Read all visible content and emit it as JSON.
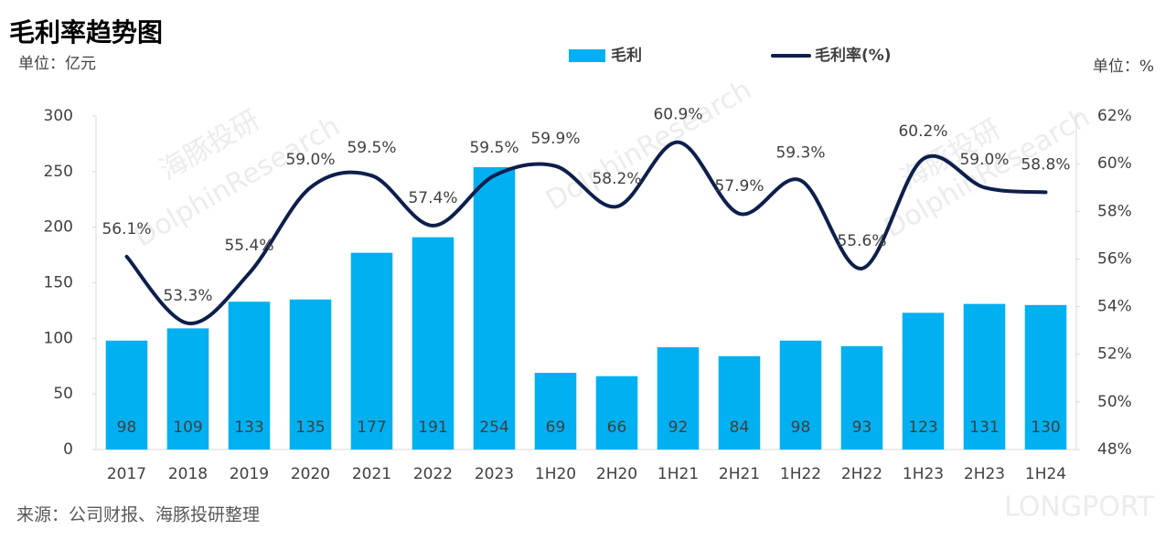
{
  "chart_data": {
    "type": "bar",
    "title": "毛利率趋势图",
    "y_label": "单位：亿元",
    "y2_label": "单位：%",
    "source": "来源：公司财报、海豚投研整理",
    "watermarks": [
      "海豚投研",
      "DolphinResearch",
      "LONGPORT"
    ],
    "categories": [
      "2017",
      "2018",
      "2019",
      "2020",
      "2021",
      "2022",
      "2023",
      "1H20",
      "2H20",
      "1H21",
      "2H21",
      "1H22",
      "2H22",
      "1H23",
      "2H23",
      "1H24"
    ],
    "series": [
      {
        "name": "毛利",
        "type": "bar",
        "color": "#00b0f0",
        "values": [
          98,
          109,
          133,
          135,
          177,
          191,
          254,
          69,
          66,
          92,
          84,
          98,
          93,
          123,
          131,
          130
        ]
      },
      {
        "name": "毛利率(%)",
        "type": "line",
        "axis": "y2",
        "color": "#0d1f4c",
        "values": [
          56.1,
          53.3,
          55.4,
          59.0,
          59.5,
          57.4,
          59.5,
          59.9,
          58.2,
          60.9,
          57.9,
          59.3,
          55.6,
          60.2,
          59.0,
          58.8
        ],
        "value_labels": [
          "56.1%",
          "53.3%",
          "55.4%",
          "59.0%",
          "59.5%",
          "57.4%",
          "59.5%",
          "59.9%",
          "58.2%",
          "60.9%",
          "57.9%",
          "59.3%",
          "55.6%",
          "60.2%",
          "59.0%",
          "58.8%"
        ]
      }
    ],
    "ylim": [
      0,
      300
    ],
    "yticks": [
      0,
      50,
      100,
      150,
      200,
      250,
      300
    ],
    "y2lim": [
      48,
      62
    ],
    "y2ticks": [
      {
        "value": 48,
        "label": "48%"
      },
      {
        "value": 50,
        "label": "50%"
      },
      {
        "value": 52,
        "label": "52%"
      },
      {
        "value": 54,
        "label": "54%"
      },
      {
        "value": 56,
        "label": "56%"
      },
      {
        "value": 58,
        "label": "58%"
      },
      {
        "value": 60,
        "label": "60%"
      },
      {
        "value": 62,
        "label": "62%"
      }
    ],
    "grid": false
  }
}
